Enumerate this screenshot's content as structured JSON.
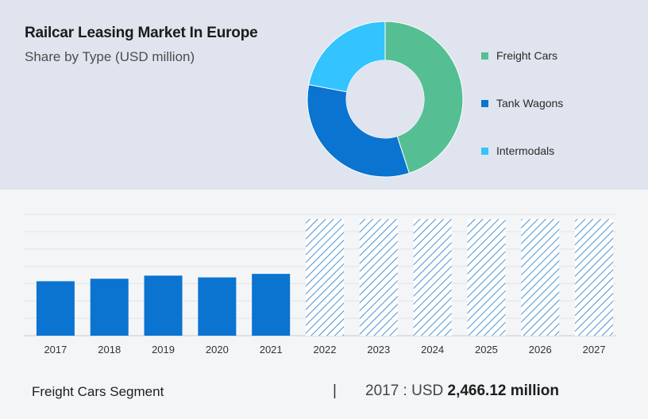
{
  "header": {
    "title": "Railcar Leasing Market In Europe",
    "subtitle": "Share by Type (USD million)"
  },
  "colors": {
    "freight": "#55bf93",
    "tank": "#0a74d0",
    "intermodal": "#33c3ff",
    "hatch": "#1f77c8"
  },
  "chart_data": [
    {
      "type": "pie",
      "donut": true,
      "title": "",
      "categories": [
        "Freight Cars",
        "Tank Wagons",
        "Intermodals"
      ],
      "values": [
        45,
        33,
        22
      ],
      "legend_position": "right"
    },
    {
      "type": "bar",
      "title": "",
      "categories": [
        "2017",
        "2018",
        "2019",
        "2020",
        "2021",
        "2022",
        "2023",
        "2024",
        "2025",
        "2026",
        "2027"
      ],
      "values": [
        2466.12,
        2580,
        2720,
        2640,
        2800,
        null,
        null,
        null,
        null,
        null,
        null
      ],
      "forecast_categories": [
        "2022",
        "2023",
        "2024",
        "2025",
        "2026",
        "2027"
      ],
      "ylim": [
        0,
        5500
      ],
      "grid": true,
      "xlabel": "",
      "ylabel": ""
    }
  ],
  "footer": {
    "segment": "Freight Cars Segment",
    "separator": "|",
    "year_prefix": "2017 : USD",
    "amount": "2,466.12 million"
  }
}
